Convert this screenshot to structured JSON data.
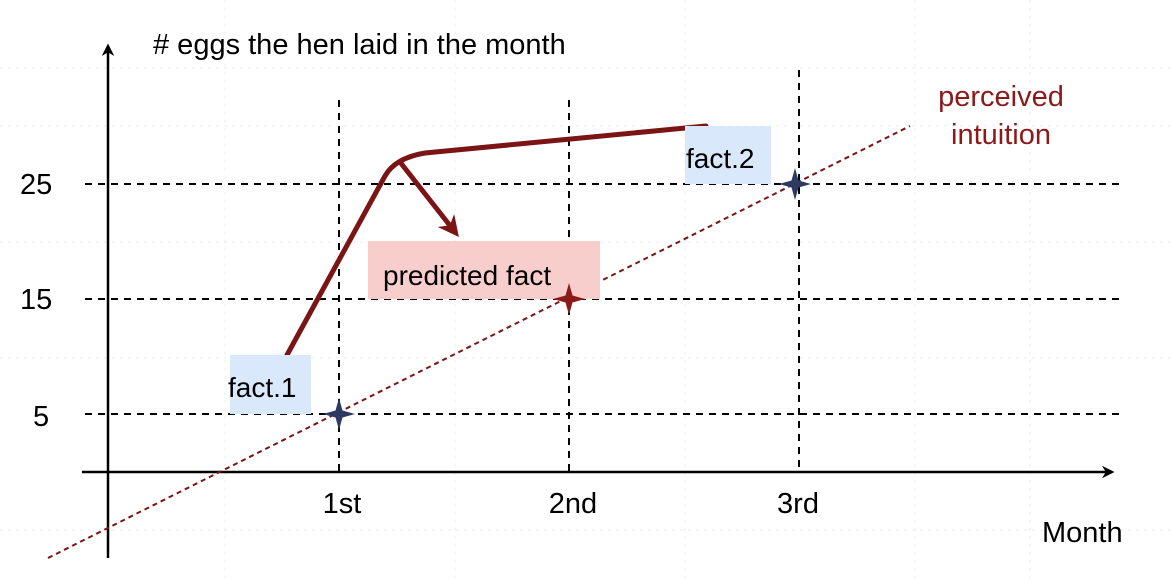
{
  "diagram": {
    "y_axis_title": "# eggs the hen laid in the month",
    "x_axis_title": "Month",
    "y_ticks": [
      "25",
      "15",
      "5"
    ],
    "x_ticks": [
      "1st",
      "2nd",
      "3rd"
    ],
    "annotations": {
      "fact1": "fact.1",
      "fact2": "fact.2",
      "predicted": "predicted fact",
      "trend": [
        "perceived",
        "intuition"
      ]
    },
    "colors": {
      "axis": "#000000",
      "trend": "#7b1414",
      "curve": "#7b1414",
      "fact_star": "#2f3a63",
      "predicted_star": "#8b1a1a",
      "fact_box": "#dae8fc",
      "predicted_box": "#f8cecc"
    }
  }
}
